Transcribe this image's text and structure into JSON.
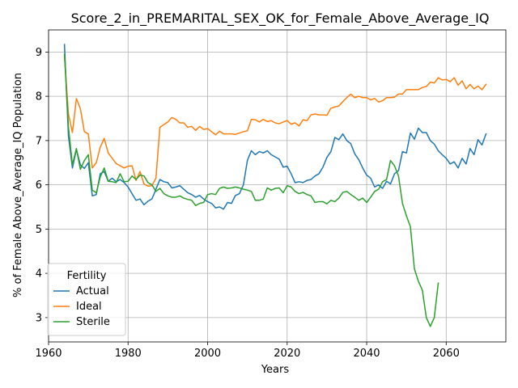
{
  "chart_data": {
    "type": "line",
    "title": "Score_2_in_PREMARITAL_SEX_OK_for_Female_Above_Average_IQ",
    "xlabel": "Years",
    "ylabel": "% of Female Above_Average_IQ Population",
    "xlim": [
      1960,
      2075
    ],
    "ylim": [
      2.45,
      9.5
    ],
    "xticks": [
      1960,
      1980,
      2000,
      2020,
      2040,
      2060
    ],
    "yticks": [
      3,
      4,
      5,
      6,
      7,
      8,
      9
    ],
    "grid": true,
    "legend": {
      "title": "Fertility",
      "placement": "lower-left"
    },
    "series": [
      {
        "name": "Actual",
        "color": "#1f77b4",
        "points": [
          [
            1964,
            9.17
          ],
          [
            1965,
            7.1
          ],
          [
            1966,
            6.38
          ],
          [
            1967,
            6.8
          ],
          [
            1968,
            6.45
          ],
          [
            1969,
            6.37
          ],
          [
            1970,
            6.5
          ],
          [
            1971,
            5.75
          ],
          [
            1972,
            5.78
          ],
          [
            1973,
            6.25
          ],
          [
            1974,
            6.3
          ],
          [
            1975,
            6.08
          ],
          [
            1976,
            6.15
          ],
          [
            1977,
            6.07
          ],
          [
            1978,
            6.12
          ],
          [
            1979,
            6.05
          ],
          [
            1980,
            5.95
          ],
          [
            1981,
            5.8
          ],
          [
            1982,
            5.65
          ],
          [
            1983,
            5.68
          ],
          [
            1984,
            5.55
          ],
          [
            1985,
            5.63
          ],
          [
            1986,
            5.68
          ],
          [
            1987,
            5.9
          ],
          [
            1988,
            6.12
          ],
          [
            1989,
            6.07
          ],
          [
            1990,
            6.05
          ],
          [
            1991,
            5.93
          ],
          [
            1992,
            5.95
          ],
          [
            1993,
            5.98
          ],
          [
            1994,
            5.9
          ],
          [
            1995,
            5.82
          ],
          [
            1996,
            5.78
          ],
          [
            1997,
            5.72
          ],
          [
            1998,
            5.76
          ],
          [
            1999,
            5.68
          ],
          [
            2000,
            5.62
          ],
          [
            2001,
            5.58
          ],
          [
            2002,
            5.48
          ],
          [
            2003,
            5.5
          ],
          [
            2004,
            5.45
          ],
          [
            2005,
            5.6
          ],
          [
            2006,
            5.58
          ],
          [
            2007,
            5.76
          ],
          [
            2008,
            5.8
          ],
          [
            2009,
            6.0
          ],
          [
            2010,
            6.55
          ],
          [
            2011,
            6.77
          ],
          [
            2012,
            6.68
          ],
          [
            2013,
            6.75
          ],
          [
            2014,
            6.72
          ],
          [
            2015,
            6.77
          ],
          [
            2016,
            6.68
          ],
          [
            2017,
            6.63
          ],
          [
            2018,
            6.58
          ],
          [
            2019,
            6.4
          ],
          [
            2020,
            6.42
          ],
          [
            2021,
            6.25
          ],
          [
            2022,
            6.05
          ],
          [
            2023,
            6.07
          ],
          [
            2024,
            6.05
          ],
          [
            2025,
            6.1
          ],
          [
            2026,
            6.12
          ],
          [
            2027,
            6.2
          ],
          [
            2028,
            6.25
          ],
          [
            2029,
            6.4
          ],
          [
            2030,
            6.62
          ],
          [
            2031,
            6.75
          ],
          [
            2032,
            7.07
          ],
          [
            2033,
            7.02
          ],
          [
            2034,
            7.15
          ],
          [
            2035,
            7.0
          ],
          [
            2036,
            6.93
          ],
          [
            2037,
            6.7
          ],
          [
            2038,
            6.57
          ],
          [
            2039,
            6.38
          ],
          [
            2040,
            6.22
          ],
          [
            2041,
            6.15
          ],
          [
            2042,
            5.95
          ],
          [
            2043,
            6.0
          ],
          [
            2044,
            5.92
          ],
          [
            2045,
            6.08
          ],
          [
            2046,
            6.02
          ],
          [
            2047,
            6.25
          ],
          [
            2048,
            6.32
          ],
          [
            2049,
            6.75
          ],
          [
            2050,
            6.72
          ],
          [
            2051,
            7.17
          ],
          [
            2052,
            7.03
          ],
          [
            2053,
            7.28
          ],
          [
            2054,
            7.18
          ],
          [
            2055,
            7.18
          ],
          [
            2056,
            7.0
          ],
          [
            2057,
            6.92
          ],
          [
            2058,
            6.77
          ],
          [
            2059,
            6.68
          ],
          [
            2060,
            6.6
          ],
          [
            2061,
            6.47
          ],
          [
            2062,
            6.52
          ],
          [
            2063,
            6.38
          ],
          [
            2064,
            6.6
          ],
          [
            2065,
            6.47
          ],
          [
            2066,
            6.82
          ],
          [
            2067,
            6.68
          ],
          [
            2068,
            7.02
          ],
          [
            2069,
            6.9
          ],
          [
            2070,
            7.15
          ]
        ]
      },
      {
        "name": "Ideal",
        "color": "#ff7f0e",
        "points": [
          [
            1964,
            8.9
          ],
          [
            1965,
            7.6
          ],
          [
            1966,
            7.18
          ],
          [
            1967,
            7.95
          ],
          [
            1968,
            7.72
          ],
          [
            1969,
            7.2
          ],
          [
            1970,
            7.15
          ],
          [
            1971,
            6.38
          ],
          [
            1972,
            6.5
          ],
          [
            1973,
            6.85
          ],
          [
            1974,
            7.05
          ],
          [
            1975,
            6.72
          ],
          [
            1976,
            6.6
          ],
          [
            1977,
            6.48
          ],
          [
            1978,
            6.43
          ],
          [
            1979,
            6.38
          ],
          [
            1980,
            6.42
          ],
          [
            1981,
            6.43
          ],
          [
            1982,
            6.1
          ],
          [
            1983,
            6.3
          ],
          [
            1984,
            6.02
          ],
          [
            1985,
            5.97
          ],
          [
            1986,
            5.98
          ],
          [
            1987,
            6.15
          ],
          [
            1988,
            7.3
          ],
          [
            1989,
            7.36
          ],
          [
            1990,
            7.42
          ],
          [
            1991,
            7.52
          ],
          [
            1992,
            7.48
          ],
          [
            1993,
            7.4
          ],
          [
            1994,
            7.4
          ],
          [
            1995,
            7.3
          ],
          [
            1996,
            7.32
          ],
          [
            1997,
            7.23
          ],
          [
            1998,
            7.32
          ],
          [
            1999,
            7.25
          ],
          [
            2000,
            7.27
          ],
          [
            2001,
            7.2
          ],
          [
            2002,
            7.13
          ],
          [
            2003,
            7.21
          ],
          [
            2004,
            7.15
          ],
          [
            2005,
            7.15
          ],
          [
            2006,
            7.15
          ],
          [
            2007,
            7.14
          ],
          [
            2008,
            7.17
          ],
          [
            2009,
            7.2
          ],
          [
            2010,
            7.22
          ],
          [
            2011,
            7.48
          ],
          [
            2012,
            7.47
          ],
          [
            2013,
            7.42
          ],
          [
            2014,
            7.48
          ],
          [
            2015,
            7.43
          ],
          [
            2016,
            7.45
          ],
          [
            2017,
            7.4
          ],
          [
            2018,
            7.38
          ],
          [
            2019,
            7.42
          ],
          [
            2020,
            7.45
          ],
          [
            2021,
            7.37
          ],
          [
            2022,
            7.4
          ],
          [
            2023,
            7.33
          ],
          [
            2024,
            7.47
          ],
          [
            2025,
            7.45
          ],
          [
            2026,
            7.58
          ],
          [
            2027,
            7.6
          ],
          [
            2028,
            7.58
          ],
          [
            2029,
            7.58
          ],
          [
            2030,
            7.57
          ],
          [
            2031,
            7.73
          ],
          [
            2032,
            7.76
          ],
          [
            2033,
            7.78
          ],
          [
            2034,
            7.88
          ],
          [
            2035,
            7.97
          ],
          [
            2036,
            8.05
          ],
          [
            2037,
            7.97
          ],
          [
            2038,
            8.0
          ],
          [
            2039,
            7.97
          ],
          [
            2040,
            7.97
          ],
          [
            2041,
            7.92
          ],
          [
            2042,
            7.95
          ],
          [
            2043,
            7.87
          ],
          [
            2044,
            7.9
          ],
          [
            2045,
            7.97
          ],
          [
            2046,
            7.97
          ],
          [
            2047,
            7.98
          ],
          [
            2048,
            8.05
          ],
          [
            2049,
            8.05
          ],
          [
            2050,
            8.15
          ],
          [
            2051,
            8.15
          ],
          [
            2052,
            8.15
          ],
          [
            2053,
            8.15
          ],
          [
            2054,
            8.2
          ],
          [
            2055,
            8.22
          ],
          [
            2056,
            8.32
          ],
          [
            2057,
            8.3
          ],
          [
            2058,
            8.42
          ],
          [
            2059,
            8.37
          ],
          [
            2060,
            8.38
          ],
          [
            2061,
            8.33
          ],
          [
            2062,
            8.42
          ],
          [
            2063,
            8.25
          ],
          [
            2064,
            8.35
          ],
          [
            2065,
            8.17
          ],
          [
            2066,
            8.27
          ],
          [
            2067,
            8.17
          ],
          [
            2068,
            8.23
          ],
          [
            2069,
            8.15
          ],
          [
            2070,
            8.27
          ]
        ]
      },
      {
        "name": "Sterile",
        "color": "#2ca02c",
        "points": [
          [
            1964,
            8.95
          ],
          [
            1965,
            7.3
          ],
          [
            1966,
            6.45
          ],
          [
            1967,
            6.82
          ],
          [
            1968,
            6.35
          ],
          [
            1969,
            6.55
          ],
          [
            1970,
            6.68
          ],
          [
            1971,
            5.88
          ],
          [
            1972,
            5.82
          ],
          [
            1973,
            6.18
          ],
          [
            1974,
            6.38
          ],
          [
            1975,
            6.08
          ],
          [
            1976,
            6.07
          ],
          [
            1977,
            6.05
          ],
          [
            1978,
            6.25
          ],
          [
            1979,
            6.07
          ],
          [
            1980,
            6.08
          ],
          [
            1981,
            6.2
          ],
          [
            1982,
            6.12
          ],
          [
            1983,
            6.22
          ],
          [
            1984,
            6.2
          ],
          [
            1985,
            6.05
          ],
          [
            1986,
            6.0
          ],
          [
            1987,
            5.85
          ],
          [
            1988,
            5.92
          ],
          [
            1989,
            5.8
          ],
          [
            1990,
            5.75
          ],
          [
            1991,
            5.72
          ],
          [
            1992,
            5.72
          ],
          [
            1993,
            5.75
          ],
          [
            1994,
            5.7
          ],
          [
            1995,
            5.67
          ],
          [
            1996,
            5.65
          ],
          [
            1997,
            5.53
          ],
          [
            1998,
            5.58
          ],
          [
            1999,
            5.6
          ],
          [
            2000,
            5.78
          ],
          [
            2001,
            5.8
          ],
          [
            2002,
            5.78
          ],
          [
            2003,
            5.92
          ],
          [
            2004,
            5.95
          ],
          [
            2005,
            5.92
          ],
          [
            2006,
            5.93
          ],
          [
            2007,
            5.95
          ],
          [
            2008,
            5.93
          ],
          [
            2009,
            5.9
          ],
          [
            2010,
            5.88
          ],
          [
            2011,
            5.85
          ],
          [
            2012,
            5.65
          ],
          [
            2013,
            5.65
          ],
          [
            2014,
            5.68
          ],
          [
            2015,
            5.93
          ],
          [
            2016,
            5.88
          ],
          [
            2017,
            5.92
          ],
          [
            2018,
            5.93
          ],
          [
            2019,
            5.82
          ],
          [
            2020,
            5.98
          ],
          [
            2021,
            5.95
          ],
          [
            2022,
            5.85
          ],
          [
            2023,
            5.8
          ],
          [
            2024,
            5.83
          ],
          [
            2025,
            5.78
          ],
          [
            2026,
            5.75
          ],
          [
            2027,
            5.6
          ],
          [
            2028,
            5.62
          ],
          [
            2029,
            5.62
          ],
          [
            2030,
            5.57
          ],
          [
            2031,
            5.65
          ],
          [
            2032,
            5.62
          ],
          [
            2033,
            5.7
          ],
          [
            2034,
            5.83
          ],
          [
            2035,
            5.85
          ],
          [
            2036,
            5.78
          ],
          [
            2037,
            5.72
          ],
          [
            2038,
            5.65
          ],
          [
            2039,
            5.7
          ],
          [
            2040,
            5.6
          ],
          [
            2041,
            5.72
          ],
          [
            2042,
            5.85
          ],
          [
            2043,
            5.9
          ],
          [
            2044,
            6.07
          ],
          [
            2045,
            6.12
          ],
          [
            2046,
            6.55
          ],
          [
            2047,
            6.43
          ],
          [
            2048,
            6.2
          ],
          [
            2049,
            5.58
          ],
          [
            2050,
            5.3
          ],
          [
            2051,
            5.05
          ],
          [
            2052,
            4.1
          ],
          [
            2053,
            3.82
          ],
          [
            2054,
            3.62
          ],
          [
            2055,
            3.0
          ],
          [
            2056,
            2.8
          ],
          [
            2057,
            3.0
          ],
          [
            2058,
            3.78
          ]
        ]
      }
    ]
  }
}
